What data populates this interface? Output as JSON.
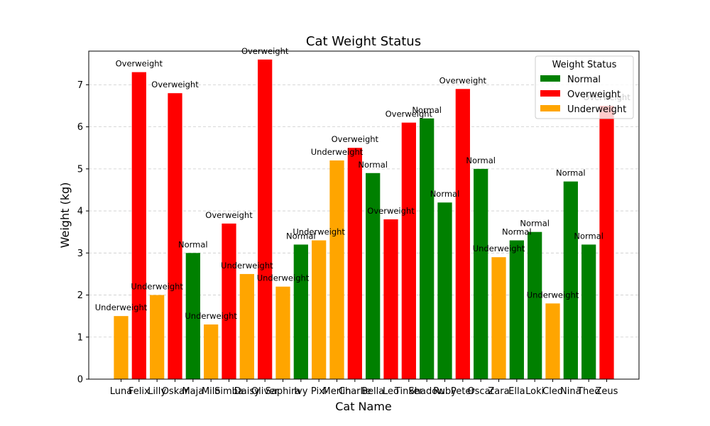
{
  "chart_data": {
    "type": "bar",
    "title": "Cat Weight Status",
    "xlabel": "Cat Name",
    "ylabel": "Weight (kg)",
    "ylim": [
      0,
      7.8
    ],
    "yticks": [
      0,
      1,
      2,
      3,
      4,
      5,
      6,
      7
    ],
    "grid": "y, dashed",
    "legend": {
      "title": "Weight Status",
      "placement": "top-right",
      "entries": [
        {
          "label": "Normal",
          "color": "#008000"
        },
        {
          "label": "Overweight",
          "color": "#ff0000"
        },
        {
          "label": "Underweight",
          "color": "#ffa500"
        }
      ]
    },
    "categories": [
      "Luna",
      "Felix",
      "Lilly",
      "Oskar",
      "Maja",
      "Milo",
      "Simba",
      "Daisy",
      "Oliver",
      "Saphira",
      "Ivy",
      "Pixi",
      "Merlin",
      "Charlie",
      "Bella",
      "Leo",
      "Tinker",
      "Shadow",
      "Ruby",
      "Peter",
      "Oscar",
      "Zara",
      "Ella",
      "Loki",
      "Cleo",
      "Nina",
      "Theo",
      "Zeus"
    ],
    "values": [
      1.5,
      7.3,
      2.0,
      6.8,
      3.0,
      1.3,
      3.7,
      2.5,
      7.6,
      2.2,
      3.2,
      3.3,
      5.2,
      5.5,
      4.9,
      3.8,
      6.1,
      6.2,
      4.2,
      6.9,
      5.0,
      2.9,
      3.3,
      3.5,
      1.8,
      4.7,
      3.2,
      6.5
    ],
    "status": [
      "Underweight",
      "Overweight",
      "Underweight",
      "Overweight",
      "Normal",
      "Underweight",
      "Overweight",
      "Underweight",
      "Overweight",
      "Underweight",
      "Normal",
      "Underweight",
      "Underweight",
      "Overweight",
      "Normal",
      "Overweight",
      "Overweight",
      "Normal",
      "Normal",
      "Overweight",
      "Normal",
      "Underweight",
      "Normal",
      "Normal",
      "Underweight",
      "Normal",
      "Normal",
      "Overweight"
    ]
  }
}
